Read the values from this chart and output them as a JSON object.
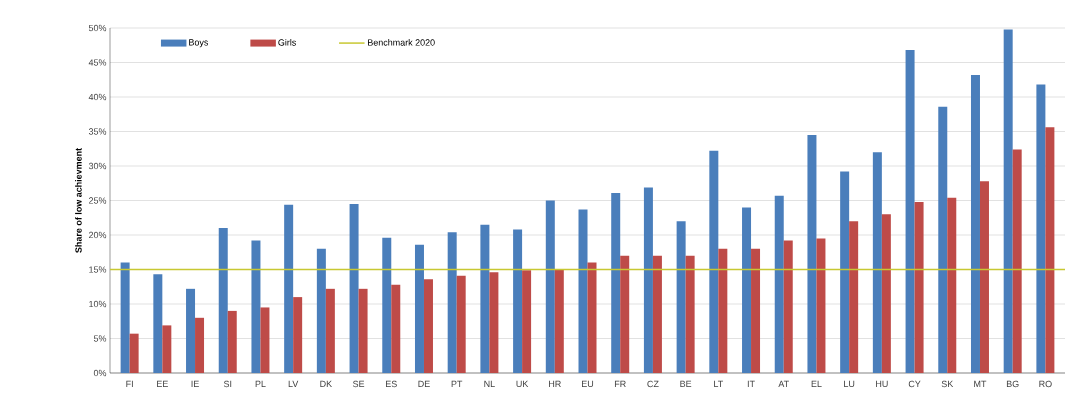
{
  "chart_data": {
    "type": "bar",
    "ylabel": "Share of low achievment",
    "categories": [
      "FI",
      "EE",
      "IE",
      "SI",
      "PL",
      "LV",
      "DK",
      "SE",
      "ES",
      "DE",
      "PT",
      "NL",
      "UK",
      "HR",
      "EU",
      "FR",
      "CZ",
      "BE",
      "LT",
      "IT",
      "AT",
      "EL",
      "LU",
      "HU",
      "CY",
      "SK",
      "MT",
      "BG",
      "RO"
    ],
    "series": [
      {
        "name": "Boys",
        "color": "#4a7ebb",
        "values": [
          16,
          14.3,
          12.2,
          21,
          19.2,
          24.4,
          18,
          24.5,
          19.6,
          18.6,
          20.4,
          21.5,
          20.8,
          25,
          23.7,
          26.1,
          26.9,
          22,
          32.2,
          24,
          25.7,
          34.5,
          29.2,
          32,
          46.8,
          38.6,
          43.2,
          49.8,
          41.8
        ]
      },
      {
        "name": "Girls",
        "color": "#be4b48",
        "values": [
          5.7,
          6.9,
          8,
          9,
          9.5,
          11,
          12.2,
          12.2,
          12.8,
          13.6,
          14.1,
          14.6,
          14.9,
          15,
          16,
          17,
          17,
          17,
          18,
          18,
          19.2,
          19.5,
          22,
          23,
          24.8,
          25.4,
          27.8,
          32.4,
          35.6
        ]
      }
    ],
    "ref_lines": [
      {
        "axis": "y",
        "value": 15,
        "label": "Benchmark 2020",
        "color": "#c8c832"
      }
    ],
    "ylim": [
      0,
      50
    ],
    "yticks": [
      {
        "value": 0,
        "label": "0%"
      },
      {
        "value": 5,
        "label": "5%"
      },
      {
        "value": 10,
        "label": "10%"
      },
      {
        "value": 15,
        "label": "15%"
      },
      {
        "value": 20,
        "label": "20%"
      },
      {
        "value": 25,
        "label": "25%"
      },
      {
        "value": 30,
        "label": "30%"
      },
      {
        "value": 35,
        "label": "35%"
      },
      {
        "value": 40,
        "label": "40%"
      },
      {
        "value": 45,
        "label": "45%"
      },
      {
        "value": 50,
        "label": "50%"
      }
    ],
    "grid": "y",
    "legend": "top left"
  }
}
